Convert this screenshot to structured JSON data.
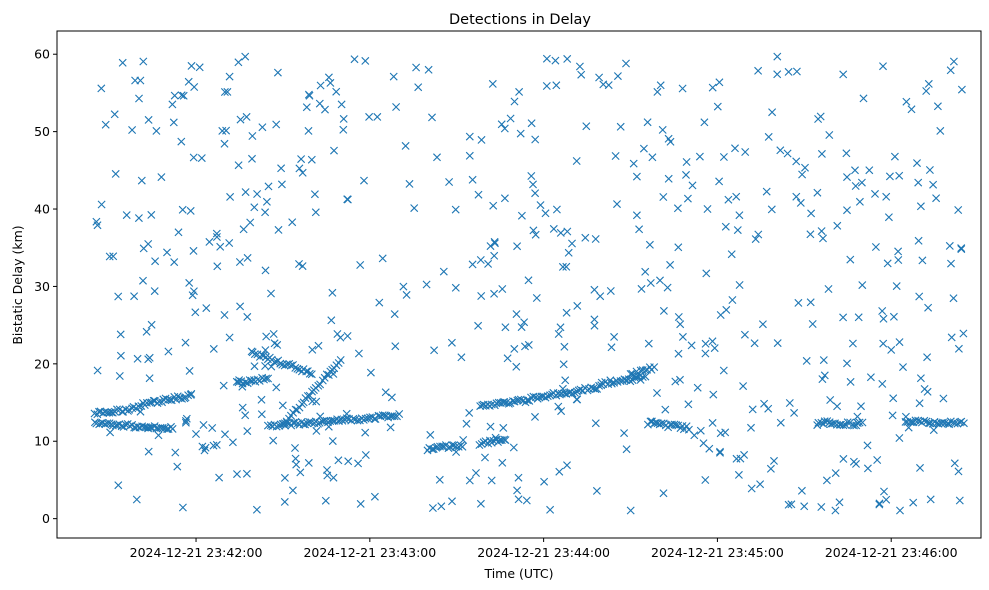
{
  "chart_data": {
    "type": "scatter",
    "title": "Detections in Delay",
    "xlabel": "Time (UTC)",
    "ylabel": "Bistatic Delay (km)",
    "marker": "x",
    "color": "#1f77b4",
    "grid": false,
    "xlim": [
      "2024-12-21 23:41:12",
      "2024-12-21 23:46:31"
    ],
    "ylim": [
      -2.5,
      63
    ],
    "x_ticks": [
      "2024-12-21 23:42:00",
      "2024-12-21 23:43:00",
      "2024-12-21 23:44:00",
      "2024-12-21 23:45:00",
      "2024-12-21 23:46:00"
    ],
    "y_ticks": [
      0,
      10,
      20,
      30,
      40,
      50,
      60
    ],
    "tracks": [
      {
        "start": [
          "2024-12-21 23:41:25",
          13.5
        ],
        "end": [
          "2024-12-21 23:41:40",
          14.3
        ]
      },
      {
        "start": [
          "2024-12-21 23:41:25",
          12.3
        ],
        "end": [
          "2024-12-21 23:41:52",
          11.6
        ]
      },
      {
        "start": [
          "2024-12-21 23:41:41",
          14.8
        ],
        "end": [
          "2024-12-21 23:41:58",
          15.9
        ]
      },
      {
        "start": [
          "2024-12-21 23:42:14",
          17.5
        ],
        "end": [
          "2024-12-21 23:42:25",
          18.1
        ]
      },
      {
        "start": [
          "2024-12-21 23:42:19",
          21.4
        ],
        "end": [
          "2024-12-21 23:42:40",
          18.8
        ]
      },
      {
        "start": [
          "2024-12-21 23:42:25",
          12.0
        ],
        "end": [
          "2024-12-21 23:43:10",
          13.3
        ]
      },
      {
        "start": [
          "2024-12-21 23:42:30",
          12.2
        ],
        "end": [
          "2024-12-21 23:42:50",
          20.5
        ]
      },
      {
        "start": [
          "2024-12-21 23:43:20",
          9.0
        ],
        "end": [
          "2024-12-21 23:43:32",
          9.5
        ]
      },
      {
        "start": [
          "2024-12-21 23:43:38",
          9.7
        ],
        "end": [
          "2024-12-21 23:43:47",
          10.3
        ]
      },
      {
        "start": [
          "2024-12-21 23:43:38",
          14.6
        ],
        "end": [
          "2024-12-21 23:43:55",
          15.3
        ]
      },
      {
        "start": [
          "2024-12-21 23:43:55",
          15.5
        ],
        "end": [
          "2024-12-21 23:44:20",
          17.0
        ]
      },
      {
        "start": [
          "2024-12-21 23:44:20",
          17.5
        ],
        "end": [
          "2024-12-21 23:44:35",
          18.2
        ]
      },
      {
        "start": [
          "2024-12-21 23:44:30",
          18.5
        ],
        "end": [
          "2024-12-21 23:44:38",
          19.5
        ]
      },
      {
        "start": [
          "2024-12-21 23:44:36",
          12.4
        ],
        "end": [
          "2024-12-21 23:44:50",
          11.7
        ]
      },
      {
        "start": [
          "2024-12-21 23:45:35",
          12.4
        ],
        "end": [
          "2024-12-21 23:45:50",
          12.2
        ]
      },
      {
        "start": [
          "2024-12-21 23:46:05",
          12.6
        ],
        "end": [
          "2024-12-21 23:46:25",
          12.3
        ]
      }
    ],
    "scatter_points": 620
  }
}
